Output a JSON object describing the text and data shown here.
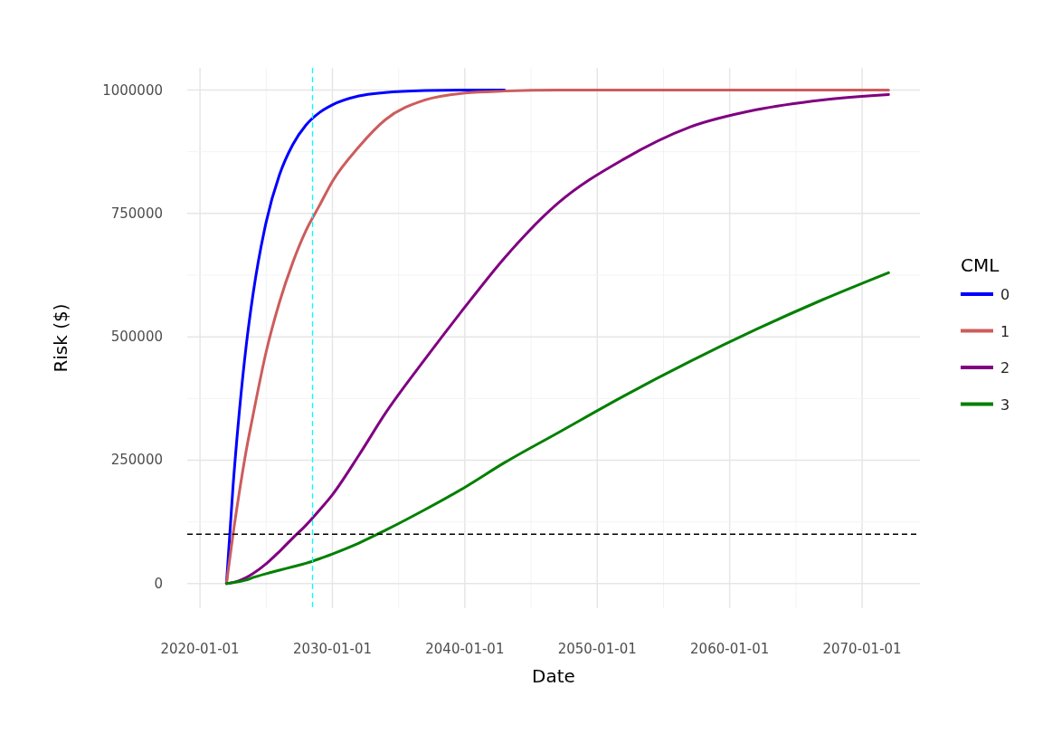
{
  "chart_data": {
    "type": "line",
    "xlabel": "Date",
    "ylabel": "Risk ($)",
    "legend_title": "CML",
    "legend": "right",
    "grid": true,
    "line_style": "solid",
    "x": [
      "2022-01-01",
      "2022-07-01",
      "2023-01-01",
      "2023-07-01",
      "2024-01-01",
      "2025-01-01",
      "2026-01-01",
      "2027-01-01",
      "2028-01-01",
      "2029-01-01",
      "2030-01-01",
      "2032-01-01",
      "2034-01-01",
      "2037-01-01",
      "2040-01-01",
      "2043-01-01",
      "2047-01-01",
      "2052-01-01",
      "2057-01-01",
      "2062-01-01",
      "2067-01-01",
      "2072-01-01"
    ],
    "series": [
      {
        "name": "0",
        "color": "#0000ff",
        "values": [
          0,
          197000,
          356000,
          483000,
          585000,
          733000,
          828000,
          889000,
          929000,
          954000,
          970000,
          988000,
          995000,
          999000,
          1000000,
          1000000,
          null,
          null,
          null,
          null,
          null,
          null
        ]
      },
      {
        "name": "1",
        "color": "#cd5c5c",
        "values": [
          0,
          100000,
          190000,
          270000,
          340000,
          470000,
          570000,
          650000,
          715000,
          765000,
          815000,
          885000,
          940000,
          980000,
          994000,
          998000,
          1000000,
          1000000,
          1000000,
          1000000,
          1000000,
          1000000
        ]
      },
      {
        "name": "2",
        "color": "#800080",
        "values": [
          0,
          2000,
          6000,
          12000,
          20000,
          40000,
          65000,
          92000,
          118000,
          148000,
          180000,
          260000,
          345000,
          455000,
          560000,
          660000,
          770000,
          860000,
          925000,
          960000,
          980000,
          991000
        ]
      },
      {
        "name": "3",
        "color": "#008000",
        "values": [
          0,
          2000,
          4000,
          7000,
          12000,
          20000,
          27000,
          34000,
          41000,
          50000,
          60000,
          82000,
          108000,
          150000,
          195000,
          245000,
          305000,
          380000,
          450000,
          515000,
          575000,
          630000
        ]
      }
    ],
    "xlim": [
      "2019-01-15",
      "2074-05-15"
    ],
    "xticks": [
      "2020-01-01",
      {
        "value": "2025-01-01",
        "label": null
      },
      "2030-01-01",
      {
        "value": "2035-01-01",
        "label": null
      },
      "2040-01-01",
      {
        "value": "2045-01-01",
        "label": null
      },
      "2050-01-01",
      {
        "value": "2055-01-01",
        "label": null
      },
      "2060-01-01",
      {
        "value": "2065-01-01",
        "label": null
      },
      "2070-01-01"
    ],
    "ylim": [
      -50000,
      1045000
    ],
    "yticks": [
      0,
      {
        "value": 125000,
        "label": null
      },
      250000,
      {
        "value": 375000,
        "label": null
      },
      500000,
      {
        "value": 625000,
        "label": null
      },
      750000,
      {
        "value": 875000,
        "label": null
      },
      1000000
    ],
    "ref_lines": [
      {
        "axis": "x",
        "value": "2028-07-01",
        "color": "#00ffff",
        "line_style": "dashed"
      },
      {
        "axis": "y",
        "value": 100000,
        "color": "#000000",
        "line_style": "dashed"
      }
    ]
  }
}
